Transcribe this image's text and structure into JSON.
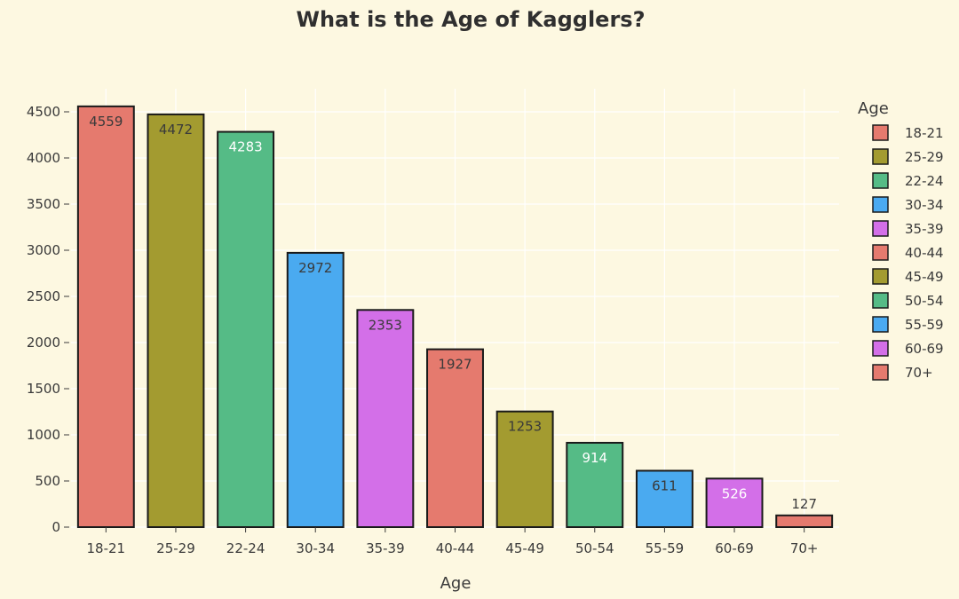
{
  "chart_data": {
    "type": "bar",
    "title": "What is the Age of Kagglers?",
    "xlabel": "Age",
    "ylabel": "",
    "categories": [
      "18-21",
      "25-29",
      "22-24",
      "30-34",
      "35-39",
      "40-44",
      "45-49",
      "50-54",
      "55-59",
      "60-69",
      "70+"
    ],
    "values": [
      4559,
      4472,
      4283,
      2972,
      2353,
      1927,
      1253,
      914,
      611,
      526,
      127
    ],
    "bar_colors": [
      "#e57a6e",
      "#a39b30",
      "#55bb86",
      "#4aaaf0",
      "#d36fe8",
      "#e57a6e",
      "#a39b30",
      "#55bb86",
      "#4aaaf0",
      "#d36fe8",
      "#e57a6e"
    ],
    "label_colors": [
      "#3a3a3a",
      "#3a3a3a",
      "#ffffff",
      "#3a3a3a",
      "#3a3a3a",
      "#3a3a3a",
      "#3a3a3a",
      "#ffffff",
      "#3a3a3a",
      "#ffffff",
      "#3a3a3a"
    ],
    "ylim": [
      0,
      4750
    ],
    "yticks": [
      0,
      500,
      1000,
      1500,
      2000,
      2500,
      3000,
      3500,
      4000,
      4500
    ],
    "grid": true,
    "legend": {
      "title": "Age",
      "placement": "right",
      "entries": [
        "18-21",
        "25-29",
        "22-24",
        "30-34",
        "35-39",
        "40-44",
        "45-49",
        "50-54",
        "55-59",
        "60-69",
        "70+"
      ]
    },
    "colors": {
      "background": "#fdf8e1",
      "grid": "#ffffff",
      "bar_outline": "#1a1a1a"
    }
  }
}
